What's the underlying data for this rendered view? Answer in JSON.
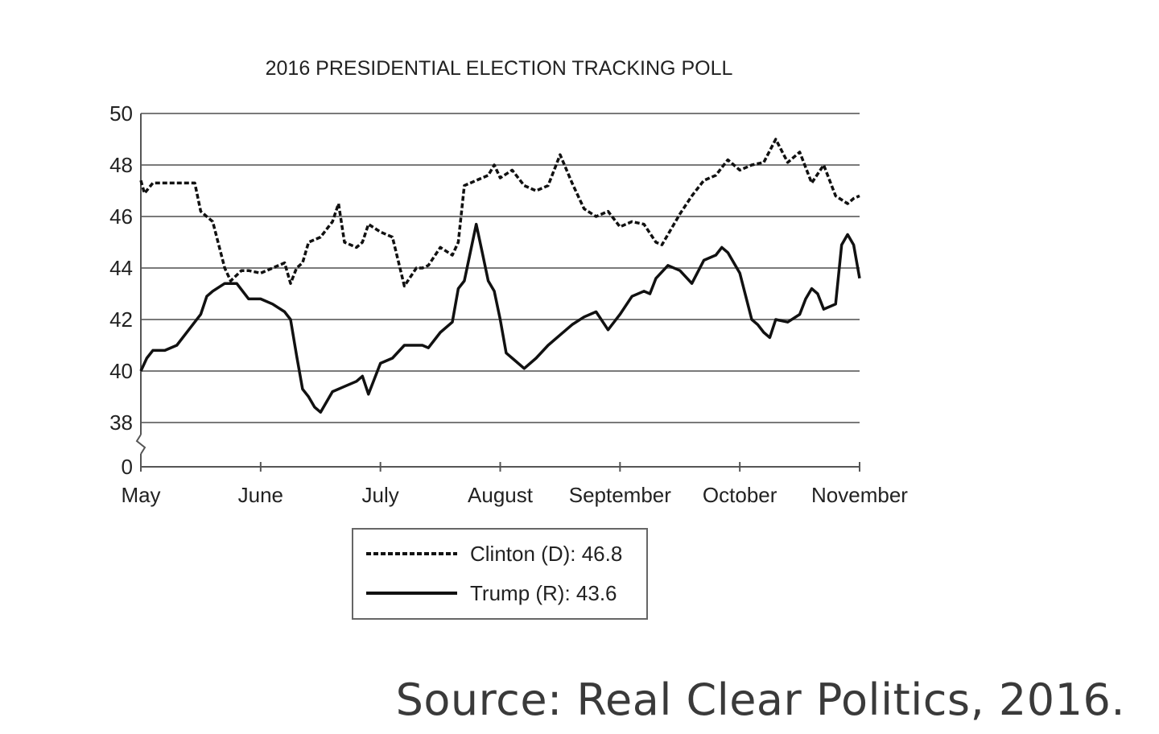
{
  "chart_data": {
    "type": "line",
    "title": "2016 PRESIDENTIAL ELECTION TRACKING POLL",
    "xlabel": "",
    "ylabel": "",
    "x_tick_labels": [
      "May",
      "June",
      "July",
      "August",
      "September",
      "October",
      "November"
    ],
    "y_tick_labels": [
      "50",
      "48",
      "46",
      "44",
      "42",
      "40",
      "38",
      "0"
    ],
    "ylim": [
      38,
      50
    ],
    "y_axis_break": true,
    "grid": "horizontal",
    "legend_position": "bottom-center",
    "series": [
      {
        "name": "Clinton (D): 46.8",
        "style": "dotted",
        "x": [
          0.0,
          0.03,
          0.1,
          0.45,
          0.5,
          0.6,
          0.7,
          0.75,
          0.84,
          0.9,
          1.0,
          1.05,
          1.1,
          1.2,
          1.25,
          1.3,
          1.35,
          1.4,
          1.5,
          1.6,
          1.65,
          1.7,
          1.8,
          1.85,
          1.9,
          2.0,
          2.1,
          2.2,
          2.3,
          2.35,
          2.4,
          2.5,
          2.6,
          2.65,
          2.7,
          2.8,
          2.9,
          2.95,
          3.0,
          3.1,
          3.2,
          3.3,
          3.4,
          3.5,
          3.6,
          3.65,
          3.7,
          3.8,
          3.9,
          4.0,
          4.1,
          4.2,
          4.3,
          4.35,
          4.4,
          4.5,
          4.6,
          4.7,
          4.8,
          4.9,
          5.0,
          5.1,
          5.2,
          5.3,
          5.4,
          5.5,
          5.6,
          5.7,
          5.8,
          5.9,
          5.95,
          6.0
        ],
        "y": [
          47.4,
          46.9,
          47.3,
          47.3,
          46.2,
          45.8,
          44.0,
          43.5,
          43.9,
          43.9,
          43.8,
          43.9,
          44.0,
          44.2,
          43.4,
          44.0,
          44.2,
          45.0,
          45.2,
          45.8,
          46.5,
          45.0,
          44.8,
          45.0,
          45.7,
          45.4,
          45.2,
          43.3,
          44.0,
          44.0,
          44.1,
          44.8,
          44.5,
          45.0,
          47.2,
          47.4,
          47.6,
          48.0,
          47.5,
          47.8,
          47.2,
          47.0,
          47.2,
          48.4,
          47.3,
          46.8,
          46.3,
          46.0,
          46.2,
          45.6,
          45.8,
          45.7,
          45.0,
          44.9,
          45.3,
          46.1,
          46.8,
          47.4,
          47.6,
          48.2,
          47.8,
          48.0,
          48.1,
          49.0,
          48.1,
          48.5,
          47.3,
          48.0,
          46.8,
          46.5,
          46.7,
          46.8
        ]
      },
      {
        "name": "Trump (R): 43.6",
        "style": "solid",
        "x": [
          0.0,
          0.05,
          0.1,
          0.2,
          0.3,
          0.4,
          0.5,
          0.55,
          0.6,
          0.7,
          0.8,
          0.9,
          1.0,
          1.1,
          1.2,
          1.25,
          1.3,
          1.35,
          1.4,
          1.45,
          1.5,
          1.6,
          1.7,
          1.8,
          1.85,
          1.9,
          2.0,
          2.1,
          2.2,
          2.3,
          2.35,
          2.4,
          2.5,
          2.6,
          2.65,
          2.7,
          2.8,
          2.85,
          2.9,
          2.95,
          3.0,
          3.05,
          3.1,
          3.2,
          3.3,
          3.4,
          3.5,
          3.6,
          3.7,
          3.8,
          3.9,
          4.0,
          4.1,
          4.2,
          4.25,
          4.3,
          4.4,
          4.5,
          4.6,
          4.7,
          4.8,
          4.85,
          4.9,
          5.0,
          5.05,
          5.1,
          5.15,
          5.2,
          5.25,
          5.3,
          5.4,
          5.5,
          5.55,
          5.6,
          5.65,
          5.7,
          5.8,
          5.85,
          5.9,
          5.95,
          6.0
        ],
        "y": [
          40.0,
          40.5,
          40.8,
          40.8,
          41.0,
          41.6,
          42.2,
          42.9,
          43.1,
          43.4,
          43.4,
          42.8,
          42.8,
          42.6,
          42.3,
          42.0,
          40.6,
          39.3,
          39.0,
          38.6,
          38.4,
          39.2,
          39.4,
          39.6,
          39.8,
          39.1,
          40.3,
          40.5,
          41.0,
          41.0,
          41.0,
          40.9,
          41.5,
          41.9,
          43.2,
          43.5,
          45.7,
          44.6,
          43.5,
          43.1,
          42.0,
          40.7,
          40.5,
          40.1,
          40.5,
          41.0,
          41.4,
          41.8,
          42.1,
          42.3,
          41.6,
          42.2,
          42.9,
          43.1,
          43.0,
          43.6,
          44.1,
          43.9,
          43.4,
          44.3,
          44.5,
          44.8,
          44.6,
          43.8,
          42.9,
          42.0,
          41.8,
          41.5,
          41.3,
          42.0,
          41.9,
          42.2,
          42.8,
          43.2,
          43.0,
          42.4,
          42.6,
          44.9,
          45.3,
          44.9,
          43.6
        ]
      }
    ]
  },
  "source_note": "Source: Real Clear Politics, 2016.",
  "colors": {
    "grid": "#7a7a7a",
    "axis": "#555555",
    "line": "#111111",
    "text": "#222222"
  }
}
